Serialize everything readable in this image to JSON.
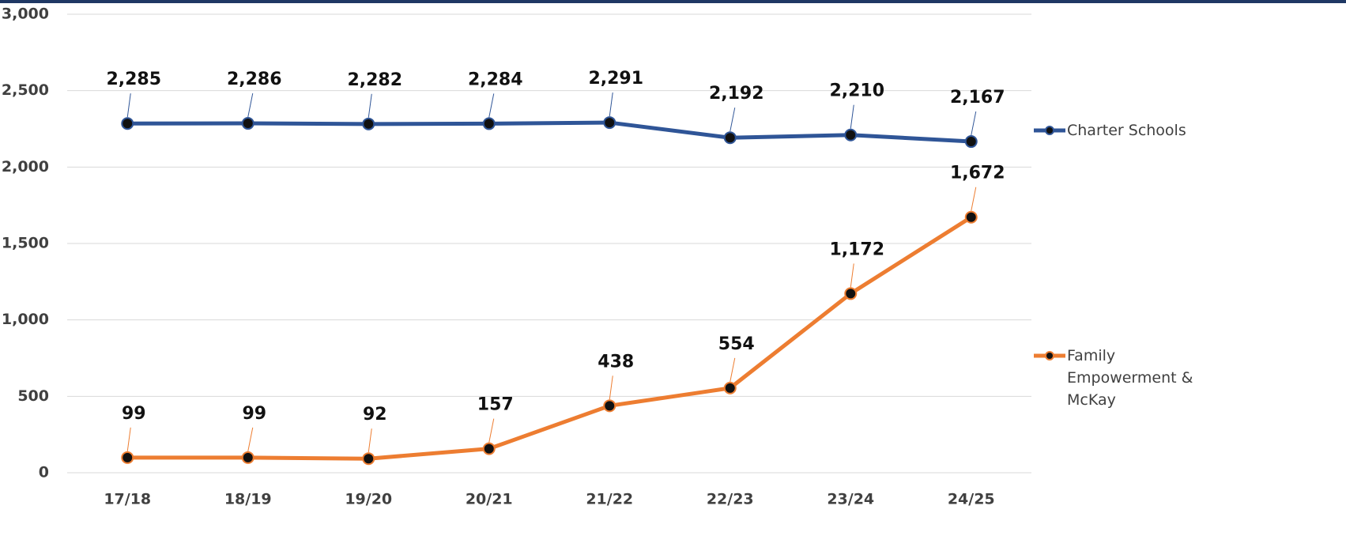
{
  "chart_data": {
    "type": "line",
    "categories": [
      "17/18",
      "18/19",
      "19/20",
      "20/21",
      "21/22",
      "22/23",
      "23/24",
      "24/25"
    ],
    "series": [
      {
        "name": "Charter Schools",
        "color": "#2f5597",
        "values": [
          2285,
          2286,
          2282,
          2284,
          2291,
          2192,
          2210,
          2167
        ],
        "value_labels": [
          "2,285",
          "2,286",
          "2,282",
          "2,284",
          "2,291",
          "2,192",
          "2,210",
          "2,167"
        ]
      },
      {
        "name": "Family Empowerment & McKay",
        "color": "#ed7d31",
        "values": [
          99,
          99,
          92,
          157,
          438,
          554,
          1172,
          1672
        ],
        "value_labels": [
          "99",
          "99",
          "92",
          "157",
          "438",
          "554",
          "1,172",
          "1,672"
        ]
      }
    ],
    "ylim": [
      0,
      3000
    ],
    "yticks": [
      0,
      500,
      {
        "value": 1000,
        "label": "1,000"
      },
      {
        "value": 1500,
        "label": "1,500"
      },
      {
        "value": 2000,
        "label": "2,000"
      },
      {
        "value": 2500,
        "label": "2,500"
      },
      {
        "value": 3000,
        "label": "3,000"
      }
    ],
    "grid": true,
    "legend": "right"
  }
}
